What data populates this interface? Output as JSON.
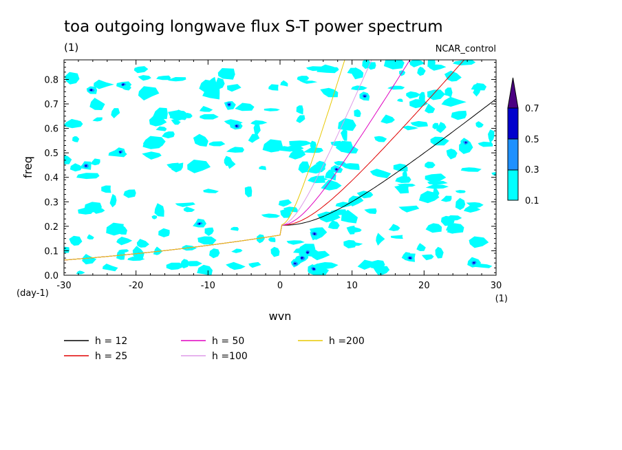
{
  "chart_data": {
    "type": "contour",
    "title": "toa outgoing longwave flux S-T power spectrum",
    "units_label": "(1)",
    "run_label": "NCAR_control",
    "xlabel": "wvn",
    "ylabel": "freq",
    "x_unit": "(1)",
    "y_unit": "(day-1)",
    "xlim": [
      -30,
      30
    ],
    "ylim": [
      0,
      0.88
    ],
    "x_ticks": [
      -30,
      -20,
      -10,
      0,
      10,
      20,
      30
    ],
    "x_tick_labels": [
      "-30",
      "-20",
      "-10",
      "0",
      "10",
      "20",
      "30"
    ],
    "y_ticks": [
      0,
      0.1,
      0.2,
      0.3,
      0.4,
      0.5,
      0.6,
      0.7,
      0.8
    ],
    "y_tick_labels": [
      "0.0",
      "0.1",
      "0.2",
      "0.3",
      "0.4",
      "0.5",
      "0.6",
      "0.7",
      "0.8"
    ],
    "colorbar": {
      "levels": [
        "0.1",
        "0.3",
        "0.5",
        "0.7"
      ],
      "colors": [
        "#00ffff",
        "#1e90ff",
        "#0000cd",
        "#4b0082"
      ]
    },
    "dispersion_curves": [
      {
        "label": "h = 12",
        "h": 12,
        "color": "#000000"
      },
      {
        "label": "h = 25",
        "h": 25,
        "color": "#e00000"
      },
      {
        "label": "h = 50",
        "h": 50,
        "color": "#e000c0"
      },
      {
        "label": "h =100",
        "h": 100,
        "color": "#dd99e8"
      },
      {
        "label": "h =200",
        "h": 200,
        "color": "#e8c800"
      }
    ]
  }
}
